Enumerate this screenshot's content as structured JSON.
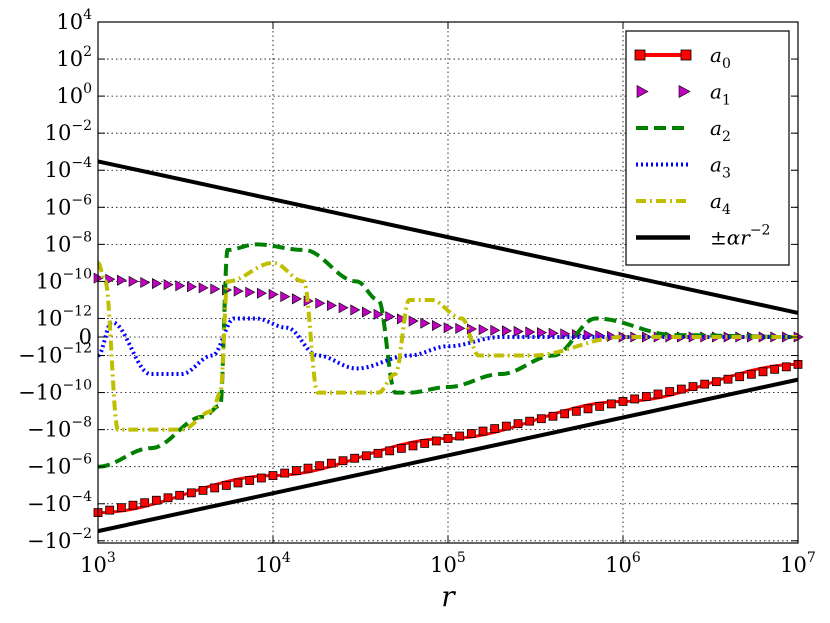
{
  "chart_data": {
    "type": "line",
    "title": "",
    "xlabel": "r",
    "ylabel": "",
    "xscale": "log",
    "yscale": "symlog",
    "xlim": [
      1000,
      10000000
    ],
    "ylim_exponent_range": [
      -2,
      4
    ],
    "linthresh_exponent": -12,
    "grid": true,
    "legend_position": "top-right",
    "x_tick_labels": [
      {
        "base": "10",
        "exp": "3"
      },
      {
        "base": "10",
        "exp": "4"
      },
      {
        "base": "10",
        "exp": "5"
      },
      {
        "base": "10",
        "exp": "6"
      },
      {
        "base": "10",
        "exp": "7"
      }
    ],
    "y_tick_labels": [
      {
        "base": "10",
        "exp": "4",
        "value": 10000.0
      },
      {
        "base": "10",
        "exp": "2",
        "value": 100.0
      },
      {
        "base": "10",
        "exp": "0",
        "value": 1.0
      },
      {
        "base": "10",
        "exp": "−2",
        "value": 0.01
      },
      {
        "base": "10",
        "exp": "−4",
        "value": 0.0001
      },
      {
        "base": "10",
        "exp": "−6",
        "value": 1e-06
      },
      {
        "base": "10",
        "exp": "−8",
        "value": 1e-08
      },
      {
        "base": "10",
        "exp": "−10",
        "value": 1e-10
      },
      {
        "base": "10",
        "exp": "−12",
        "value": 1e-12
      },
      {
        "base": "0",
        "exp": "",
        "value": 0
      },
      {
        "base": "−10",
        "exp": "−12",
        "value": -1e-12
      },
      {
        "base": "−10",
        "exp": "−10",
        "value": -1e-10
      },
      {
        "base": "−10",
        "exp": "−8",
        "value": -1e-08
      },
      {
        "base": "−10",
        "exp": "−6",
        "value": -1e-06
      },
      {
        "base": "−10",
        "exp": "−4",
        "value": -0.0001
      },
      {
        "base": "−10",
        "exp": "−2",
        "value": -0.01
      }
    ],
    "series": [
      {
        "name": "a_0",
        "label_base": "a",
        "label_sub": "0",
        "color": "#ff0000",
        "marker": "square",
        "style": "solid",
        "x": [
          1000,
          10000,
          100000,
          1000000,
          10000000
        ],
        "y": [
          -0.0003,
          -3e-06,
          -3e-08,
          -3e-10,
          -3e-12
        ]
      },
      {
        "name": "a_1",
        "label_base": "a",
        "label_sub": "1",
        "color": "#bf00bf",
        "marker": "triangle-right",
        "style": "none",
        "x": [
          1000,
          10000,
          100000,
          1000000,
          10000000
        ],
        "y": [
          1.5e-10,
          2e-11,
          5e-13,
          0,
          0
        ]
      },
      {
        "name": "a_2",
        "label_base": "a",
        "label_sub": "2",
        "color": "#008000",
        "marker": "none",
        "style": "dashed",
        "x": [
          1000,
          2000,
          4000,
          5000,
          5500,
          8000,
          15000,
          30000,
          40000,
          50000,
          60000,
          100000,
          200000,
          400000,
          700000,
          2000000,
          10000000
        ],
        "y": [
          -1e-06,
          -1e-07,
          -2e-09,
          -5e-10,
          5e-09,
          1e-08,
          5e-09,
          1e-10,
          1e-11,
          -1e-10,
          -1e-10,
          -5e-11,
          -1e-11,
          -1e-12,
          1e-12,
          1e-13,
          0
        ]
      },
      {
        "name": "a_3",
        "label_base": "a",
        "label_sub": "3",
        "color": "#0000ff",
        "marker": "none",
        "style": "dotted",
        "x": [
          1000,
          1200,
          2000,
          3000,
          4500,
          6000,
          8000,
          12000,
          18000,
          30000,
          60000,
          100000,
          200000,
          500000,
          1000000,
          10000000
        ],
        "y": [
          -1e-12,
          8e-13,
          -1e-11,
          -1e-11,
          -1e-12,
          1e-12,
          1e-12,
          5e-13,
          -1e-12,
          -5e-12,
          -1e-12,
          -5e-13,
          0,
          0,
          0,
          0
        ]
      },
      {
        "name": "a_4",
        "label_base": "a",
        "label_sub": "4",
        "color": "#bfbf00",
        "marker": "none",
        "style": "dashdot",
        "x": [
          1000,
          1100,
          1300,
          3000,
          4500,
          5000,
          5500,
          10000,
          15000,
          18000,
          20000,
          40000,
          50000,
          60000,
          80000,
          120000,
          150000,
          300000,
          1000000,
          10000000
        ],
        "y": [
          1e-09,
          1e-10,
          -1e-08,
          -1e-08,
          -1e-09,
          -1e-10,
          1e-10,
          1e-09,
          1e-10,
          -1e-10,
          -1e-10,
          -1e-10,
          -1e-11,
          1e-11,
          1e-11,
          1e-12,
          -1e-12,
          -1e-12,
          0,
          0
        ]
      },
      {
        "name": "±αr^-2",
        "label_base": "±αr",
        "label_sub": "",
        "label_sup": "−2",
        "color": "#000000",
        "marker": "none",
        "style": "solid",
        "x": [
          1000,
          10000000
        ],
        "y_upper": [
          0.0003,
          2e-12
        ],
        "y_lower": [
          -0.003,
          -2e-11
        ]
      }
    ]
  }
}
